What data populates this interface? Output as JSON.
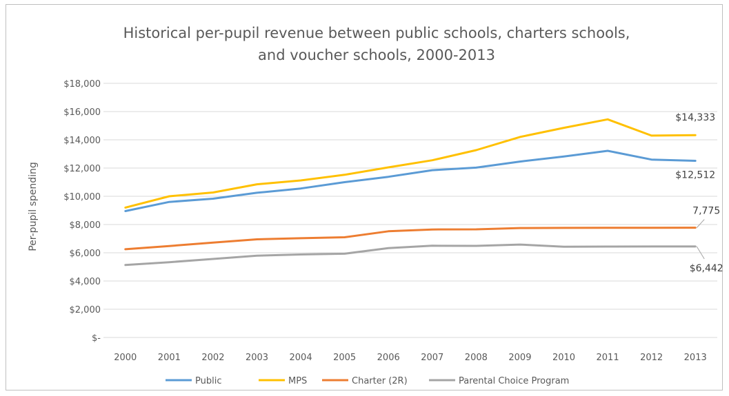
{
  "chart_data": {
    "type": "line",
    "title_line1": "Historical per-pupil revenue between public schools, charters schools,",
    "title_line2": "and voucher schools, 2000-2013",
    "xlabel": "",
    "ylabel": "Per-pupil spending",
    "categories": [
      "2000",
      "2001",
      "2002",
      "2003",
      "2004",
      "2005",
      "2006",
      "2007",
      "2008",
      "2009",
      "2010",
      "2011",
      "2012",
      "2013"
    ],
    "ylim": [
      0,
      18000
    ],
    "y_ticks": [
      {
        "value": 0,
        "label": "$-"
      },
      {
        "value": 2000,
        "label": "$2,000"
      },
      {
        "value": 4000,
        "label": "$4,000"
      },
      {
        "value": 6000,
        "label": "$6,000"
      },
      {
        "value": 8000,
        "label": "$8,000"
      },
      {
        "value": 10000,
        "label": "$10,000"
      },
      {
        "value": 12000,
        "label": "$12,000"
      },
      {
        "value": 14000,
        "label": "$14,000"
      },
      {
        "value": 16000,
        "label": "$16,000"
      },
      {
        "value": 18000,
        "label": "$18,000"
      }
    ],
    "grid": true,
    "legend_position": "bottom",
    "series": [
      {
        "name": "Public",
        "color": "#5b9bd5",
        "values": [
          8950,
          9600,
          9830,
          10250,
          10550,
          11000,
          11380,
          11850,
          12030,
          12460,
          12820,
          13220,
          12600,
          12512
        ]
      },
      {
        "name": "MPS",
        "color": "#ffc000",
        "values": [
          9200,
          10000,
          10270,
          10850,
          11120,
          11520,
          12050,
          12550,
          13270,
          14200,
          14850,
          15450,
          14300,
          14333
        ]
      },
      {
        "name": "Charter (2R)",
        "color": "#ed7d31",
        "values": [
          6250,
          6480,
          6720,
          6950,
          7030,
          7100,
          7520,
          7650,
          7660,
          7750,
          7760,
          7765,
          7770,
          7775
        ]
      },
      {
        "name": "Parental Choice Program",
        "color": "#a5a5a5",
        "values": [
          5130,
          5330,
          5560,
          5790,
          5880,
          5930,
          6330,
          6500,
          6490,
          6580,
          6430,
          6440,
          6442,
          6442
        ]
      }
    ],
    "annotations": [
      {
        "series": 1,
        "index": 13,
        "text": "$14,333",
        "leader": false
      },
      {
        "series": 0,
        "index": 13,
        "text": "$12,512",
        "leader": false
      },
      {
        "series": 2,
        "index": 13,
        "text": "7,775",
        "leader": true
      },
      {
        "series": 3,
        "index": 13,
        "text": "$6,442",
        "leader": true
      }
    ]
  }
}
